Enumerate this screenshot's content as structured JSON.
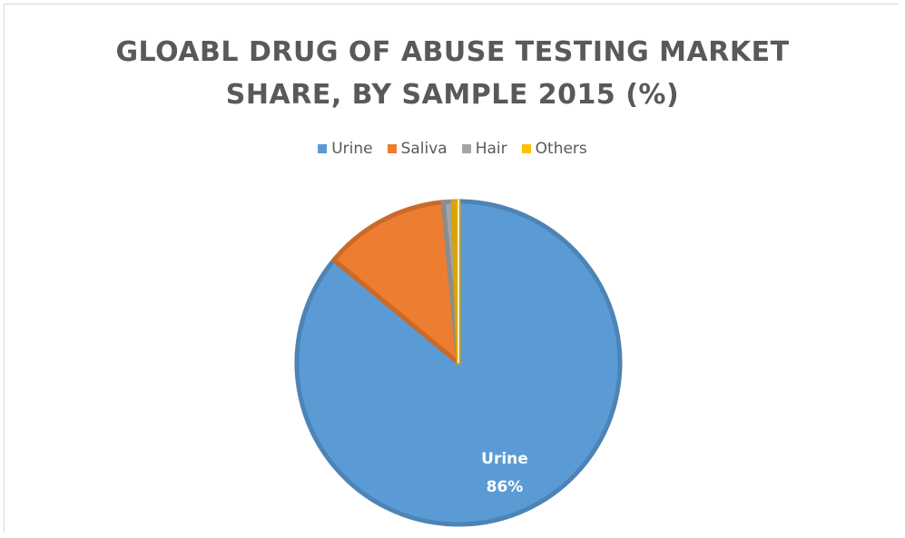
{
  "chart_data": {
    "type": "pie",
    "title_lines": [
      "GLOABL DRUG OF ABUSE TESTING MARKET",
      "SHARE, BY SAMPLE 2015 (%)"
    ],
    "legend_position": "top",
    "slices": [
      {
        "name": "Urine",
        "value": 86,
        "color": "#5b9bd5",
        "data_label": "86%"
      },
      {
        "name": "Saliva",
        "value": 12.5,
        "color": "#ed7d31"
      },
      {
        "name": "Hair",
        "value": 1,
        "color": "#a5a5a5"
      },
      {
        "name": "Others",
        "value": 0.5,
        "color": "#ffc000"
      }
    ]
  }
}
